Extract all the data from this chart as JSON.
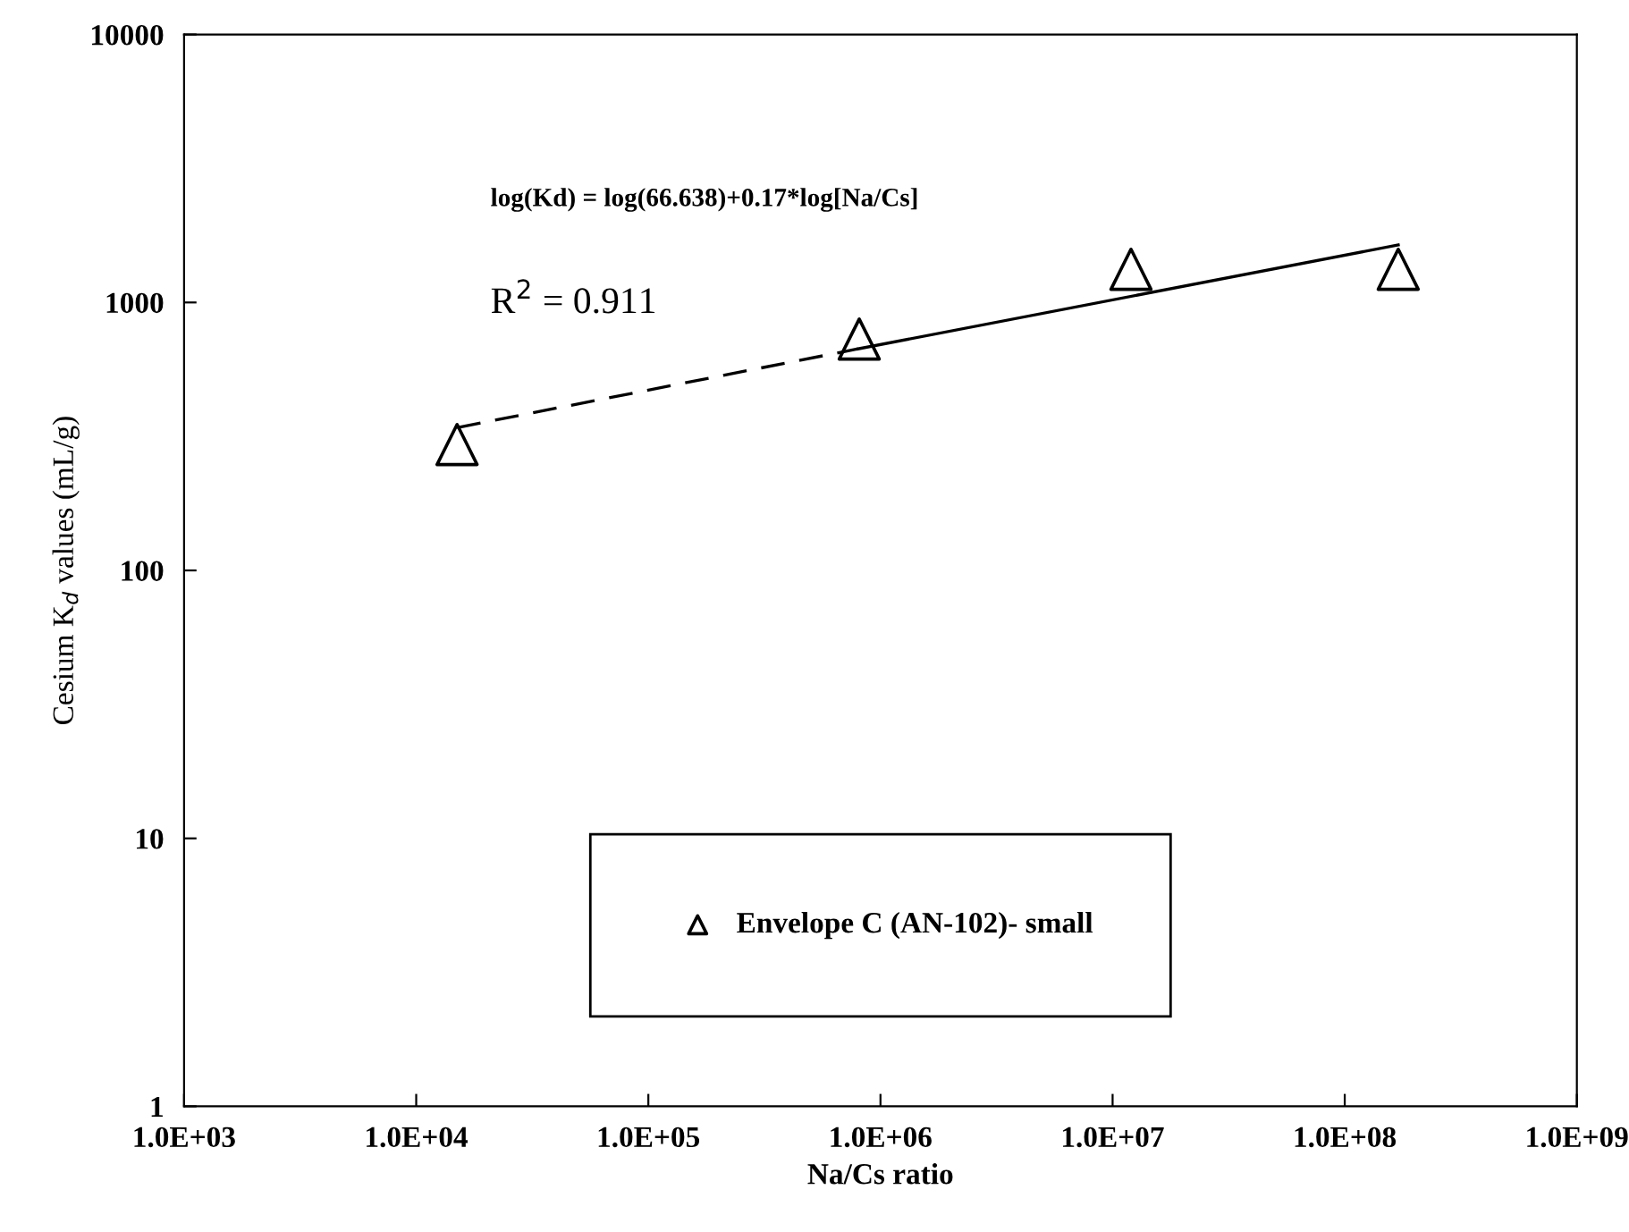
{
  "chart_data": {
    "type": "scatter",
    "xlabel": "Na/Cs ratio",
    "ylabel": "Cesium K$_{d}$ values (mL/g)",
    "log": "xy",
    "grid": false,
    "legend": "bottom",
    "xlim": [
      1000,
      1000000000
    ],
    "ylim": [
      1,
      10000
    ],
    "xticks": [
      {
        "value": 1000,
        "label": "1.0E+03"
      },
      {
        "value": 10000,
        "label": "1.0E+04"
      },
      {
        "value": 100000,
        "label": "1.0E+05"
      },
      {
        "value": 1000000,
        "label": "1.0E+06"
      },
      {
        "value": 10000000,
        "label": "1.0E+07"
      },
      {
        "value": 100000000,
        "label": "1.0E+08"
      },
      {
        "value": 1000000000,
        "label": "1.0E+09"
      }
    ],
    "yticks": [
      1,
      10,
      100,
      1000,
      10000
    ],
    "series": [
      {
        "name": "Envelope C (AN-102)- small",
        "marker": "triangle",
        "color": "#000000",
        "x": [
          15000,
          810000,
          12000000,
          170000000
        ],
        "values": [
          295,
          730,
          1330,
          1330
        ]
      },
      {
        "type": "line",
        "line_style": "dashed",
        "color": "#000000",
        "x": [
          15000,
          800000
        ],
        "values": [
          341,
          671
        ]
      },
      {
        "type": "line",
        "line_style": "solid",
        "color": "#000000",
        "x": [
          800000,
          170000000
        ],
        "values": [
          671,
          1640
        ]
      }
    ],
    "annotations": [
      "log(Kd) = log(66.638)+0.17*log[Na/Cs]",
      "R$^{2}$ = 0.911"
    ]
  }
}
